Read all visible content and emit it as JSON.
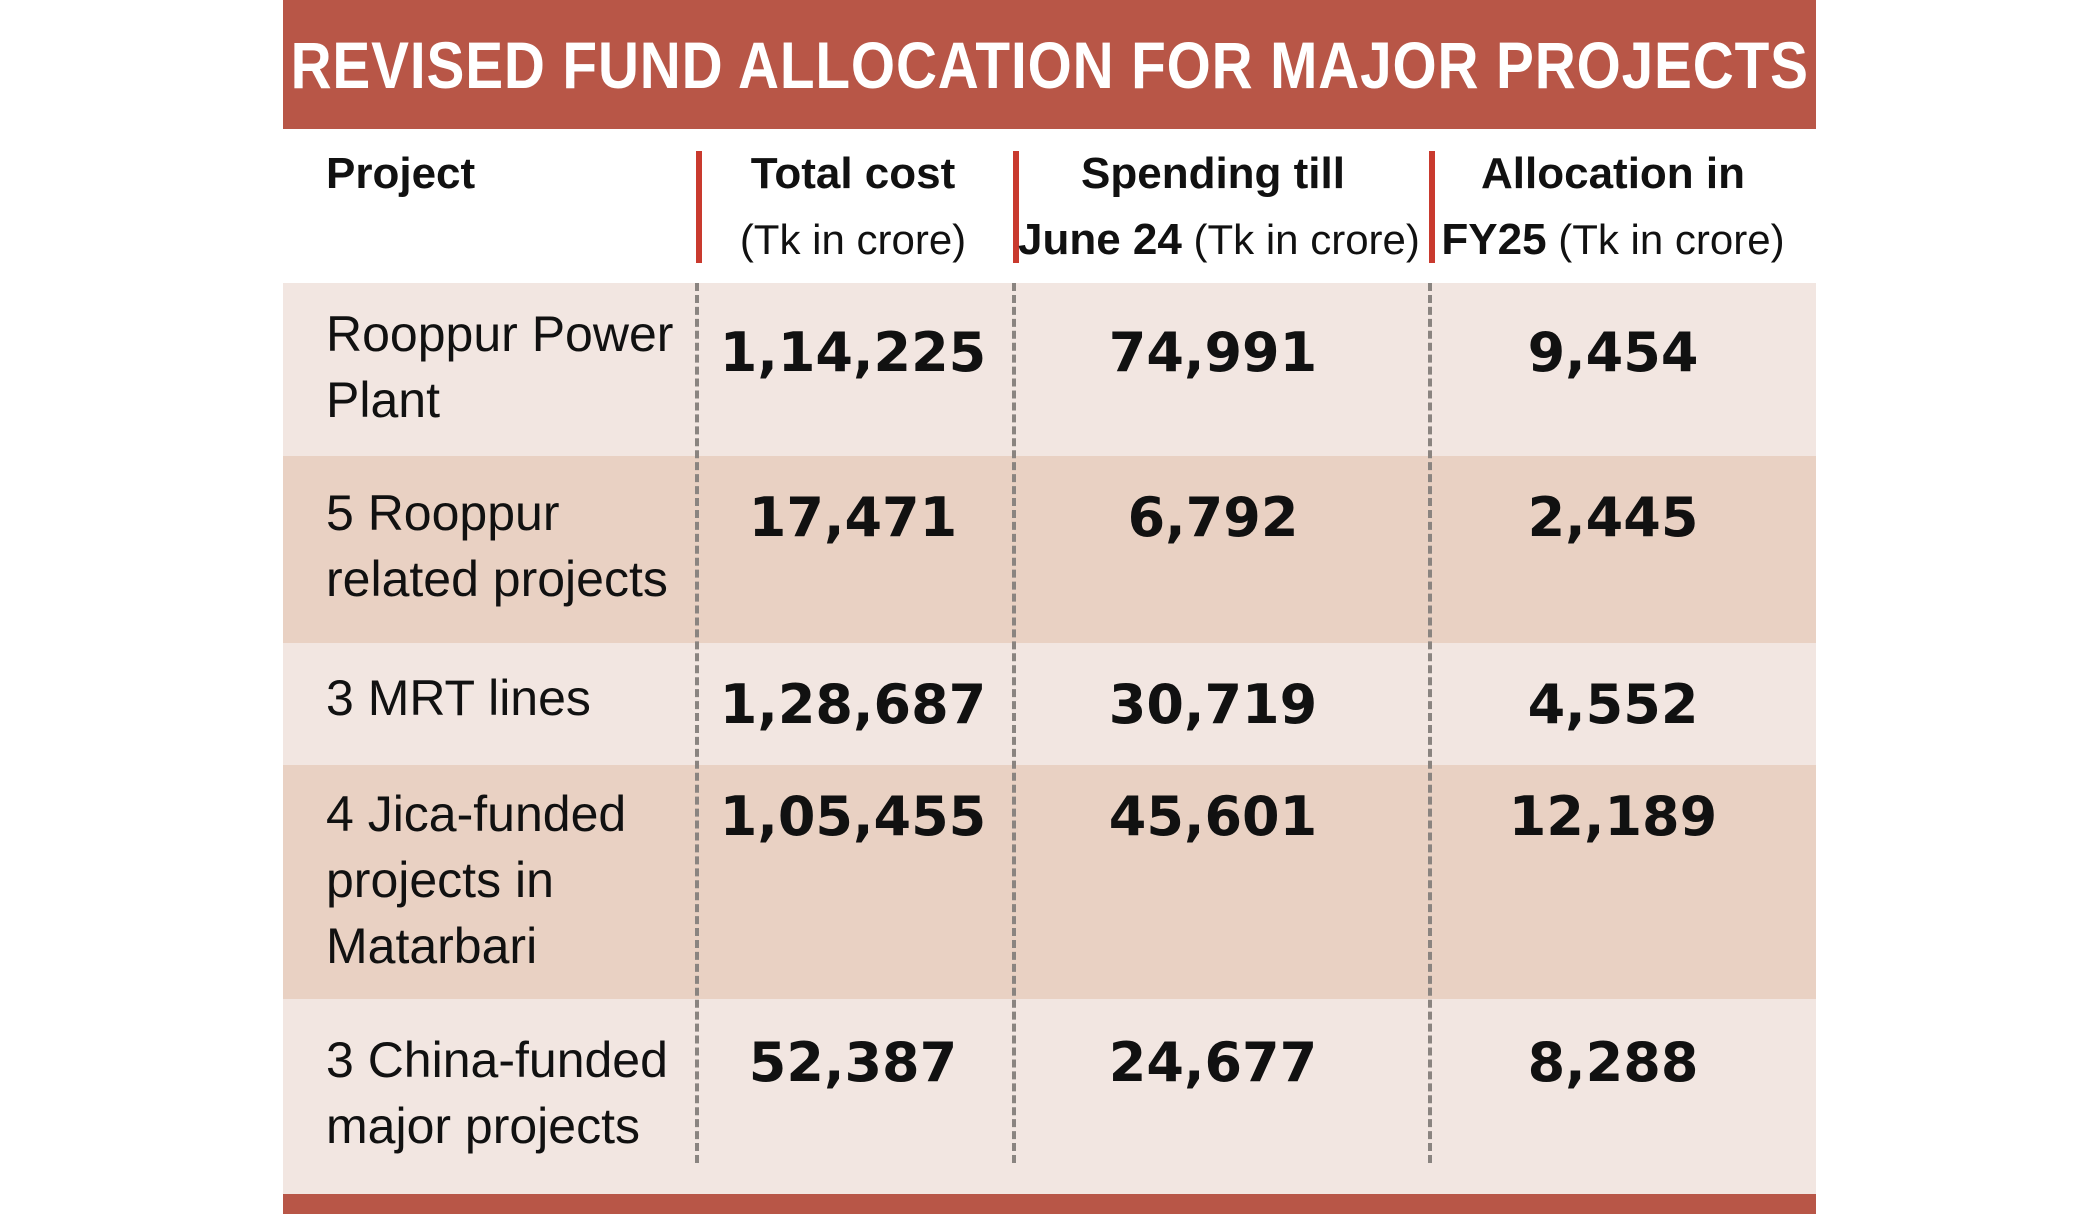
{
  "title": "REVISED FUND ALLOCATION FOR MAJOR PROJECTS",
  "headers": {
    "project": "Project",
    "total_cost": {
      "line1": "Total cost",
      "line2": "(Tk in crore)"
    },
    "spending": {
      "line1": "Spending till",
      "line2_bold": "June 24",
      "line2_light": " (Tk in crore)"
    },
    "allocation": {
      "line1": "Allocation in",
      "line2_bold": "FY25",
      "line2_light": " (Tk in crore)"
    }
  },
  "rows": [
    {
      "project_lines": [
        "Rooppur Power",
        "Plant"
      ],
      "total_cost": "1,14,225",
      "spending": "74,991",
      "allocation": "9,454"
    },
    {
      "project_lines": [
        "5 Rooppur",
        "related projects"
      ],
      "total_cost": "17,471",
      "spending": "6,792",
      "allocation": "2,445"
    },
    {
      "project_lines": [
        "3 MRT lines"
      ],
      "total_cost": "1,28,687",
      "spending": "30,719",
      "allocation": "4,552"
    },
    {
      "project_lines": [
        "4 Jica-funded",
        "projects in",
        "Matarbari"
      ],
      "total_cost": "1,05,455",
      "spending": "45,601",
      "allocation": "12,189"
    },
    {
      "project_lines": [
        "3 China-funded",
        "major projects"
      ],
      "total_cost": "52,387",
      "spending": "24,677",
      "allocation": "8,288"
    }
  ],
  "colors": {
    "title_bar": "#b85647",
    "row_light": "#f2e6e1",
    "row_dark": "#e9d1c3",
    "header_divider": "#c93a2e"
  },
  "chart_data": {
    "type": "table",
    "title": "REVISED FUND ALLOCATION FOR MAJOR PROJECTS",
    "columns": [
      "Project",
      "Total cost (Tk in crore)",
      "Spending till June 24 (Tk in crore)",
      "Allocation in FY25 (Tk in crore)"
    ],
    "rows": [
      [
        "Rooppur Power Plant",
        114225,
        74991,
        9454
      ],
      [
        "5 Rooppur related projects",
        17471,
        6792,
        2445
      ],
      [
        "3 MRT lines",
        128687,
        30719,
        4552
      ],
      [
        "4 Jica-funded projects in Matarbari",
        105455,
        45601,
        12189
      ],
      [
        "3 China-funded major projects",
        52387,
        24677,
        8288
      ]
    ]
  }
}
